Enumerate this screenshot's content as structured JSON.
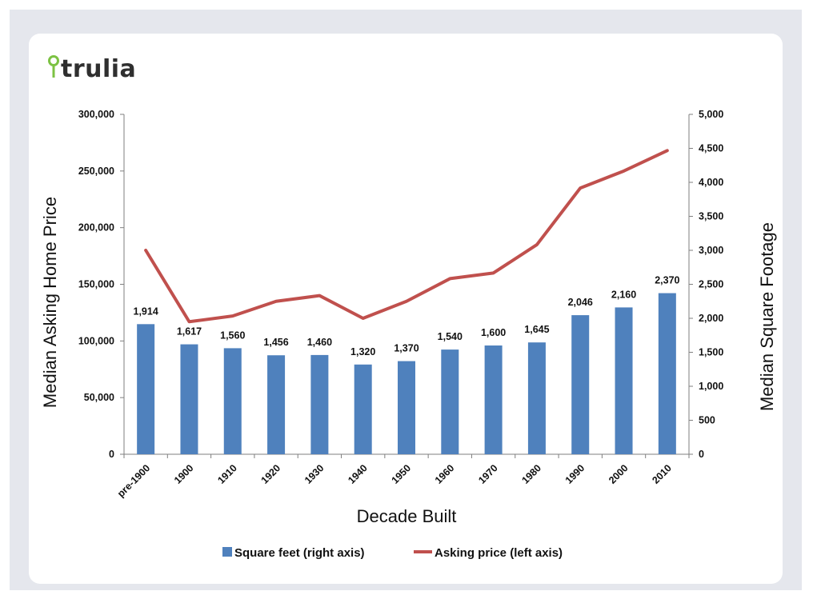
{
  "logo": {
    "text": "trulia",
    "pin_color": "#7cc243"
  },
  "colors": {
    "bars": "#4f81bd",
    "line": "#c0504d",
    "axis": "#7f7f7f"
  },
  "chart_data": {
    "type": "bar+line",
    "xlabel": "Decade Built",
    "ylabel_left": "Median Asking Home Price",
    "ylabel_right": "Median Square Footage",
    "categories": [
      "pre-1900",
      "1900",
      "1910",
      "1920",
      "1930",
      "1940",
      "1950",
      "1960",
      "1970",
      "1980",
      "1990",
      "2000",
      "2010"
    ],
    "ylim_left": [
      0,
      300000
    ],
    "ylim_right": [
      0,
      5000
    ],
    "yticks_left": [
      "0",
      "50,000",
      "100,000",
      "150,000",
      "200,000",
      "250,000",
      "300,000"
    ],
    "yticks_right": [
      "0",
      "500",
      "1,000",
      "1,500",
      "2,000",
      "2,500",
      "3,000",
      "3,500",
      "4,000",
      "4,500",
      "5,000"
    ],
    "grid": false,
    "legend_position": "bottom",
    "series": [
      {
        "name": "Square feet (right axis)",
        "type": "bar",
        "axis": "right",
        "values": [
          1914,
          1617,
          1560,
          1456,
          1460,
          1320,
          1370,
          1540,
          1600,
          1645,
          2046,
          2160,
          2370
        ],
        "data_labels": [
          "1,914",
          "1,617",
          "1,560",
          "1,456",
          "1,460",
          "1,320",
          "1,370",
          "1,540",
          "1,600",
          "1,645",
          "2,046",
          "2,160",
          "2,370"
        ]
      },
      {
        "name": "Asking price (left axis)",
        "type": "line",
        "axis": "left",
        "values": [
          180000,
          117000,
          122000,
          135000,
          140000,
          120000,
          135000,
          155000,
          160000,
          185000,
          235000,
          250000,
          268000
        ]
      }
    ]
  }
}
